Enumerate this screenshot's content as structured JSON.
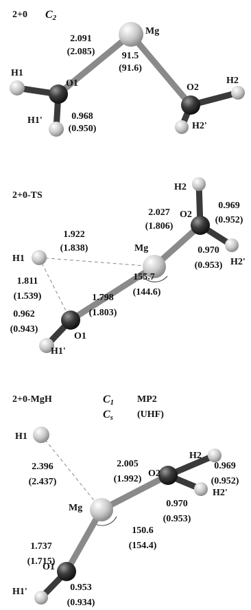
{
  "panels": [
    {
      "title": "2+0",
      "symmetry": [
        {
          "symbol": "C",
          "sub": "2"
        }
      ],
      "atoms": [
        "Mg",
        "O1",
        "O2",
        "H1",
        "H1'",
        "H2",
        "H2'"
      ],
      "labels": [
        "2.091",
        "(2.085)",
        "91.5",
        "(91.6)",
        "0.968",
        "(0.950)"
      ]
    },
    {
      "title": "2+0-TS",
      "atoms": [
        "H2",
        "O2",
        "H2'",
        "Mg",
        "H1",
        "O1",
        "H1'"
      ],
      "labels": [
        "2.027",
        "(1.806)",
        "0.969",
        "(0.952)",
        "0.970",
        "(0.953)",
        "1.922",
        "(1.838)",
        "155.7",
        "(144.6)",
        "1.811",
        "(1.539)",
        "1.798",
        "(1.803)",
        "0.962",
        "(0.943)"
      ]
    },
    {
      "title": "2+0-MgH",
      "symmetry": [
        {
          "symbol": "C",
          "sub": "1",
          "method": "MP2"
        },
        {
          "symbol": "C",
          "sub": "s",
          "method": "(UHF)"
        }
      ],
      "atoms": [
        "H1",
        "H2",
        "O2",
        "H2'",
        "Mg",
        "O1",
        "H1'"
      ],
      "labels": [
        "2.396",
        "(2.437)",
        "2.005",
        "(1.992)",
        "0.969",
        "(0.952)",
        "0.970",
        "(0.953)",
        "1.737",
        "(1.715)",
        "150.6",
        "(154.4)",
        "0.953",
        "(0.934)"
      ]
    }
  ]
}
